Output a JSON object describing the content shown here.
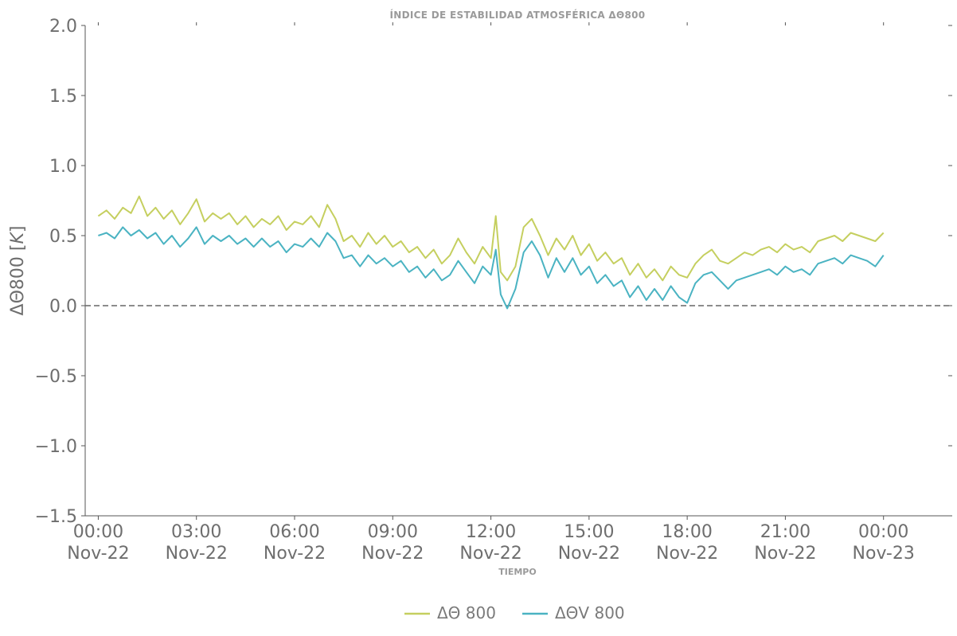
{
  "chart_data": {
    "type": "line",
    "title": "ÍNDICE DE ESTABILIDAD ATMOSFÉRICA ΔΘ800",
    "xlabel": "TIEMPO",
    "ylabel": "ΔΘ800 [K]",
    "ylabel_main": "ΔΘ800 [",
    "ylabel_unit": "K",
    "ylabel_close": "]",
    "ylim": [
      -1.5,
      2.0
    ],
    "yticks": [
      -1.5,
      -1.0,
      -0.5,
      0.0,
      0.5,
      1.0,
      1.5,
      2.0
    ],
    "ytick_labels": [
      "−1.5",
      "−1.0",
      "−0.5",
      "0.0",
      "0.5",
      "1.0",
      "1.5",
      "2.0"
    ],
    "xlim_hours": [
      -0.4,
      26.1
    ],
    "xticks": [
      {
        "hour": 0,
        "time": "00:00",
        "date": "Nov-22"
      },
      {
        "hour": 3,
        "time": "03:00",
        "date": "Nov-22"
      },
      {
        "hour": 6,
        "time": "06:00",
        "date": "Nov-22"
      },
      {
        "hour": 9,
        "time": "09:00",
        "date": "Nov-22"
      },
      {
        "hour": 12,
        "time": "12:00",
        "date": "Nov-22"
      },
      {
        "hour": 15,
        "time": "15:00",
        "date": "Nov-22"
      },
      {
        "hour": 18,
        "time": "18:00",
        "date": "Nov-22"
      },
      {
        "hour": 21,
        "time": "21:00",
        "date": "Nov-22"
      },
      {
        "hour": 24,
        "time": "00:00",
        "date": "Nov-23"
      }
    ],
    "reference_line": {
      "y": 0.0,
      "style": "dashed",
      "color": "#666666"
    },
    "legend_placement": "bottom-center",
    "series": [
      {
        "name": "ΔΘ 800",
        "color": "#c5cf5f",
        "x_hours": [
          0,
          0.25,
          0.5,
          0.75,
          1,
          1.25,
          1.5,
          1.75,
          2,
          2.25,
          2.5,
          2.75,
          3,
          3.25,
          3.5,
          3.75,
          4,
          4.25,
          4.5,
          4.75,
          5,
          5.25,
          5.5,
          5.75,
          6,
          6.25,
          6.5,
          6.75,
          7,
          7.25,
          7.5,
          7.75,
          8,
          8.25,
          8.5,
          8.75,
          9,
          9.25,
          9.5,
          9.75,
          10,
          10.25,
          10.5,
          10.75,
          11,
          11.25,
          11.5,
          11.75,
          12,
          12.15,
          12.3,
          12.5,
          12.75,
          13,
          13.25,
          13.5,
          13.75,
          14,
          14.25,
          14.5,
          14.75,
          15,
          15.25,
          15.5,
          15.75,
          16,
          16.25,
          16.5,
          16.75,
          17,
          17.25,
          17.5,
          17.75,
          18,
          18.25,
          18.5,
          18.75,
          19,
          19.25,
          19.5,
          19.75,
          20,
          20.25,
          20.5,
          20.75,
          21,
          21.25,
          21.5,
          21.75,
          22,
          22.25,
          22.5,
          22.75,
          23,
          23.25,
          23.5,
          23.75,
          24
        ],
        "values": [
          0.64,
          0.68,
          0.62,
          0.7,
          0.66,
          0.78,
          0.64,
          0.7,
          0.62,
          0.68,
          0.58,
          0.66,
          0.76,
          0.6,
          0.66,
          0.62,
          0.66,
          0.58,
          0.64,
          0.56,
          0.62,
          0.58,
          0.64,
          0.54,
          0.6,
          0.58,
          0.64,
          0.56,
          0.72,
          0.62,
          0.46,
          0.5,
          0.42,
          0.52,
          0.44,
          0.5,
          0.42,
          0.46,
          0.38,
          0.42,
          0.34,
          0.4,
          0.3,
          0.36,
          0.48,
          0.38,
          0.3,
          0.42,
          0.34,
          0.64,
          0.24,
          0.18,
          0.28,
          0.56,
          0.62,
          0.5,
          0.36,
          0.48,
          0.4,
          0.5,
          0.36,
          0.44,
          0.32,
          0.38,
          0.3,
          0.34,
          0.22,
          0.3,
          0.2,
          0.26,
          0.18,
          0.28,
          0.22,
          0.2,
          0.3,
          0.36,
          0.4,
          0.32,
          0.3,
          0.34,
          0.38,
          0.36,
          0.4,
          0.42,
          0.38,
          0.44,
          0.4,
          0.42,
          0.38,
          0.46,
          0.48,
          0.5,
          0.46,
          0.52,
          0.5,
          0.48,
          0.46,
          0.52
        ]
      },
      {
        "name": "ΔΘV 800",
        "color": "#4ab3c2",
        "x_hours": [
          0,
          0.25,
          0.5,
          0.75,
          1,
          1.25,
          1.5,
          1.75,
          2,
          2.25,
          2.5,
          2.75,
          3,
          3.25,
          3.5,
          3.75,
          4,
          4.25,
          4.5,
          4.75,
          5,
          5.25,
          5.5,
          5.75,
          6,
          6.25,
          6.5,
          6.75,
          7,
          7.25,
          7.5,
          7.75,
          8,
          8.25,
          8.5,
          8.75,
          9,
          9.25,
          9.5,
          9.75,
          10,
          10.25,
          10.5,
          10.75,
          11,
          11.25,
          11.5,
          11.75,
          12,
          12.15,
          12.3,
          12.5,
          12.75,
          13,
          13.25,
          13.5,
          13.75,
          14,
          14.25,
          14.5,
          14.75,
          15,
          15.25,
          15.5,
          15.75,
          16,
          16.25,
          16.5,
          16.75,
          17,
          17.25,
          17.5,
          17.75,
          18,
          18.25,
          18.5,
          18.75,
          19,
          19.25,
          19.5,
          19.75,
          20,
          20.25,
          20.5,
          20.75,
          21,
          21.25,
          21.5,
          21.75,
          22,
          22.25,
          22.5,
          22.75,
          23,
          23.25,
          23.5,
          23.75,
          24
        ],
        "values": [
          0.5,
          0.52,
          0.48,
          0.56,
          0.5,
          0.54,
          0.48,
          0.52,
          0.44,
          0.5,
          0.42,
          0.48,
          0.56,
          0.44,
          0.5,
          0.46,
          0.5,
          0.44,
          0.48,
          0.42,
          0.48,
          0.42,
          0.46,
          0.38,
          0.44,
          0.42,
          0.48,
          0.42,
          0.52,
          0.46,
          0.34,
          0.36,
          0.28,
          0.36,
          0.3,
          0.34,
          0.28,
          0.32,
          0.24,
          0.28,
          0.2,
          0.26,
          0.18,
          0.22,
          0.32,
          0.24,
          0.16,
          0.28,
          0.22,
          0.4,
          0.08,
          -0.02,
          0.12,
          0.38,
          0.46,
          0.36,
          0.2,
          0.34,
          0.24,
          0.34,
          0.22,
          0.28,
          0.16,
          0.22,
          0.14,
          0.18,
          0.06,
          0.14,
          0.04,
          0.12,
          0.04,
          0.14,
          0.06,
          0.02,
          0.16,
          0.22,
          0.24,
          0.18,
          0.12,
          0.18,
          0.2,
          0.22,
          0.24,
          0.26,
          0.22,
          0.28,
          0.24,
          0.26,
          0.22,
          0.3,
          0.32,
          0.34,
          0.3,
          0.36,
          0.34,
          0.32,
          0.28,
          0.36
        ]
      }
    ]
  }
}
